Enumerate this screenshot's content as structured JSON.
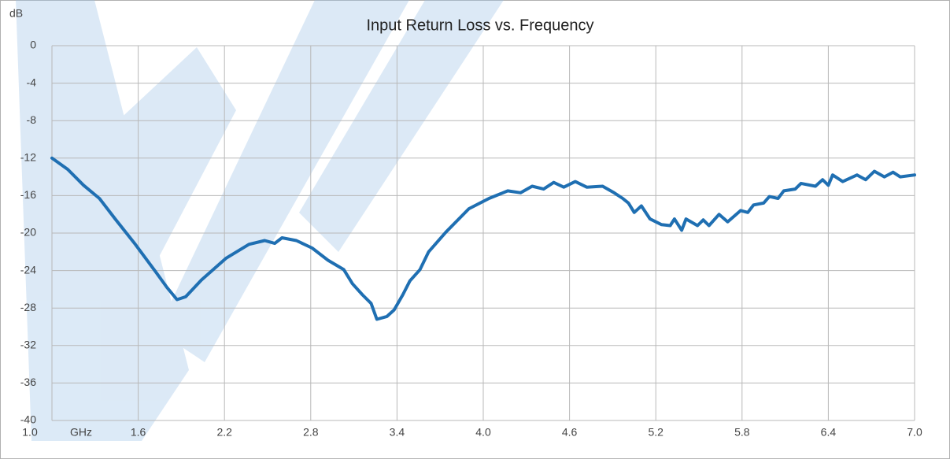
{
  "chart_data": {
    "type": "line",
    "title": "Input Return Loss vs. Frequency",
    "y_label": "dB",
    "x_label": "GHz",
    "color": "#1f6fb2",
    "grid": true,
    "xlim": [
      1,
      7
    ],
    "ylim": [
      -40,
      0
    ],
    "xticks": [
      {
        "value": 1,
        "label": "1.0"
      },
      1.6,
      2.2,
      2.8,
      3.4,
      {
        "value": 4,
        "label": "4.0"
      },
      4.6,
      5.2,
      5.8,
      6.4,
      {
        "value": 7,
        "label": "7.0"
      }
    ],
    "yticks": [
      0,
      -4,
      -8,
      -12,
      -16,
      -20,
      -24,
      -28,
      -32,
      -36,
      -40
    ],
    "x": [
      1.0,
      1.11,
      1.22,
      1.33,
      1.44,
      1.58,
      1.72,
      1.8,
      1.87,
      1.93,
      2.04,
      2.21,
      2.37,
      2.48,
      2.55,
      2.6,
      2.7,
      2.81,
      2.92,
      3.03,
      3.09,
      3.16,
      3.22,
      3.26,
      3.33,
      3.38,
      3.44,
      3.49,
      3.56,
      3.62,
      3.74,
      3.9,
      4.04,
      4.17,
      4.26,
      4.34,
      4.42,
      4.49,
      4.56,
      4.64,
      4.72,
      4.83,
      4.91,
      4.97,
      5.01,
      5.05,
      5.1,
      5.16,
      5.24,
      5.3,
      5.33,
      5.38,
      5.41,
      5.49,
      5.53,
      5.57,
      5.64,
      5.7,
      5.79,
      5.84,
      5.88,
      5.95,
      5.99,
      6.05,
      6.09,
      6.17,
      6.21,
      6.31,
      6.36,
      6.4,
      6.43,
      6.5,
      6.6,
      6.66,
      6.72,
      6.79,
      6.85,
      6.9,
      7.0
    ],
    "values": [
      -12,
      -13.2,
      -14.9,
      -16.3,
      -18.5,
      -21.2,
      -24.1,
      -25.8,
      -27.1,
      -26.8,
      -25,
      -22.7,
      -21.2,
      -20.8,
      -21.1,
      -20.5,
      -20.8,
      -21.6,
      -22.9,
      -23.9,
      -25.4,
      -26.6,
      -27.5,
      -29.2,
      -28.9,
      -28.2,
      -26.6,
      -25.1,
      -23.9,
      -22,
      -19.9,
      -17.4,
      -16.3,
      -15.5,
      -15.7,
      -15,
      -15.3,
      -14.6,
      -15.1,
      -14.5,
      -15.1,
      -15,
      -15.7,
      -16.3,
      -16.8,
      -17.8,
      -17.1,
      -18.5,
      -19.1,
      -19.2,
      -18.5,
      -19.7,
      -18.5,
      -19.2,
      -18.6,
      -19.2,
      -18,
      -18.8,
      -17.6,
      -17.8,
      -17,
      -16.8,
      -16.1,
      -16.3,
      -15.5,
      -15.3,
      -14.7,
      -15,
      -14.3,
      -14.9,
      -13.8,
      -14.5,
      -13.8,
      -14.3,
      -13.4,
      -14,
      -13.5,
      -14,
      -13.8
    ]
  }
}
